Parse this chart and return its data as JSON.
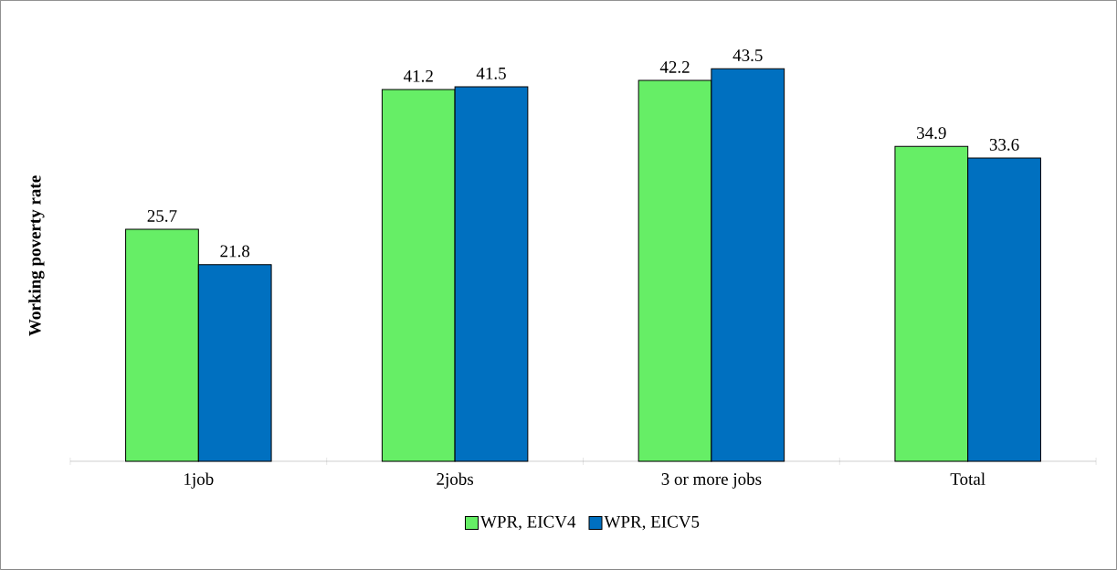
{
  "chart_data": {
    "type": "bar",
    "ylabel": "Working poverty rate",
    "categories": [
      "1job",
      "2jobs",
      "3 or more jobs",
      "Total"
    ],
    "series": [
      {
        "name": "WPR, EICV4",
        "color": "#66ee66",
        "values": [
          25.7,
          41.2,
          42.2,
          34.9
        ]
      },
      {
        "name": "WPR, EICV5",
        "color": "#0070c0",
        "values": [
          21.8,
          41.5,
          43.5,
          33.6
        ]
      }
    ],
    "data_labels": true,
    "legend": "bottom"
  }
}
